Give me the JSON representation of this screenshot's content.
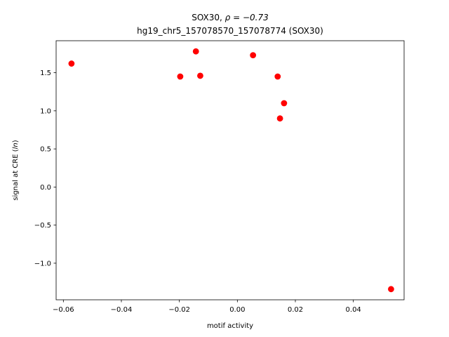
{
  "chart_data": {
    "type": "scatter",
    "title_line1_prefix": "SOX30, ",
    "title_line1_rho": "ρ = −0.73",
    "title_line2": "hg19_chr5_157078570_157078774 (SOX30)",
    "xlabel": "motif activity",
    "ylabel_prefix": "signal at CRE (",
    "ylabel_italic": "ln",
    "ylabel_suffix": ")",
    "xlim": [
      -0.0625,
      0.0575
    ],
    "ylim": [
      -1.48,
      1.92
    ],
    "x_ticks": [
      {
        "value": -0.06,
        "label": "−0.06"
      },
      {
        "value": -0.04,
        "label": "−0.04"
      },
      {
        "value": -0.02,
        "label": "−0.02"
      },
      {
        "value": 0.0,
        "label": "0.00"
      },
      {
        "value": 0.02,
        "label": "0.02"
      },
      {
        "value": 0.04,
        "label": "0.04"
      }
    ],
    "y_ticks": [
      {
        "value": -1.0,
        "label": "−1.0"
      },
      {
        "value": -0.5,
        "label": "−0.5"
      },
      {
        "value": 0.0,
        "label": "0.0"
      },
      {
        "value": 0.5,
        "label": "0.5"
      },
      {
        "value": 1.0,
        "label": "1.0"
      },
      {
        "value": 1.5,
        "label": "1.5"
      }
    ],
    "point_color": "#ff0000",
    "grid": false,
    "points": [
      {
        "x": -0.0572,
        "y": 1.62
      },
      {
        "x": -0.0197,
        "y": 1.45
      },
      {
        "x": -0.0143,
        "y": 1.78
      },
      {
        "x": -0.0128,
        "y": 1.46
      },
      {
        "x": 0.0054,
        "y": 1.73
      },
      {
        "x": 0.0139,
        "y": 1.45
      },
      {
        "x": 0.0147,
        "y": 0.9
      },
      {
        "x": 0.0161,
        "y": 1.1
      },
      {
        "x": 0.053,
        "y": -1.34
      }
    ]
  }
}
